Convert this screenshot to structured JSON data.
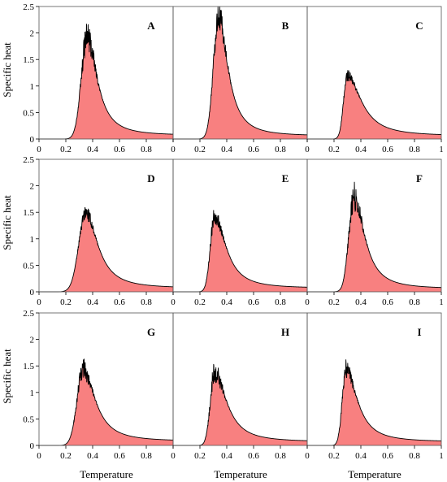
{
  "chart_data": {
    "type": "area",
    "layout": "3x3 grid of panels, shared axes",
    "xlabel": "Temperature",
    "ylabel": "Specific heat",
    "xlim": [
      0,
      1
    ],
    "ylim": [
      0,
      2.5
    ],
    "y_ticks": [
      "0",
      "0.5",
      "1",
      "1.5",
      "2",
      "2.5"
    ],
    "x_ticks_inner": [
      "0",
      "0.2",
      "0.4",
      "0.6",
      "0.8",
      ""
    ],
    "x_ticks_last": [
      "0",
      "0.2",
      "0.4",
      "0.6",
      "0.8",
      "1"
    ],
    "grid": false,
    "fill_color": "#f88080",
    "line_color": "#000000",
    "panels": [
      {
        "label": "A",
        "peak_x": 0.36,
        "peak_y": 1.95,
        "onset": 0.12,
        "w_left": 0.062,
        "w_right": 0.14,
        "noise": 0.16,
        "tail": 0.07
      },
      {
        "label": "B",
        "peak_x": 0.34,
        "peak_y": 2.35,
        "onset": 0.12,
        "w_left": 0.055,
        "w_right": 0.13,
        "noise": 0.12,
        "tail": 0.06
      },
      {
        "label": "C",
        "peak_x": 0.3,
        "peak_y": 1.2,
        "onset": 0.15,
        "w_left": 0.04,
        "w_right": 0.2,
        "noise": 0.1,
        "tail": 0.06
      },
      {
        "label": "D",
        "peak_x": 0.35,
        "peak_y": 1.5,
        "onset": 0.13,
        "w_left": 0.075,
        "w_right": 0.17,
        "noise": 0.1,
        "tail": 0.07
      },
      {
        "label": "E",
        "peak_x": 0.31,
        "peak_y": 1.45,
        "onset": 0.14,
        "w_left": 0.045,
        "w_right": 0.16,
        "noise": 0.12,
        "tail": 0.07
      },
      {
        "label": "F",
        "peak_x": 0.35,
        "peak_y": 1.8,
        "onset": 0.15,
        "w_left": 0.055,
        "w_right": 0.15,
        "noise": 0.16,
        "tail": 0.06
      },
      {
        "label": "G",
        "peak_x": 0.33,
        "peak_y": 1.45,
        "onset": 0.13,
        "w_left": 0.065,
        "w_right": 0.17,
        "noise": 0.14,
        "tail": 0.08
      },
      {
        "label": "H",
        "peak_x": 0.31,
        "peak_y": 1.4,
        "onset": 0.14,
        "w_left": 0.045,
        "w_right": 0.17,
        "noise": 0.16,
        "tail": 0.07
      },
      {
        "label": "I",
        "peak_x": 0.29,
        "peak_y": 1.45,
        "onset": 0.13,
        "w_left": 0.04,
        "w_right": 0.16,
        "noise": 0.12,
        "tail": 0.07
      }
    ]
  }
}
